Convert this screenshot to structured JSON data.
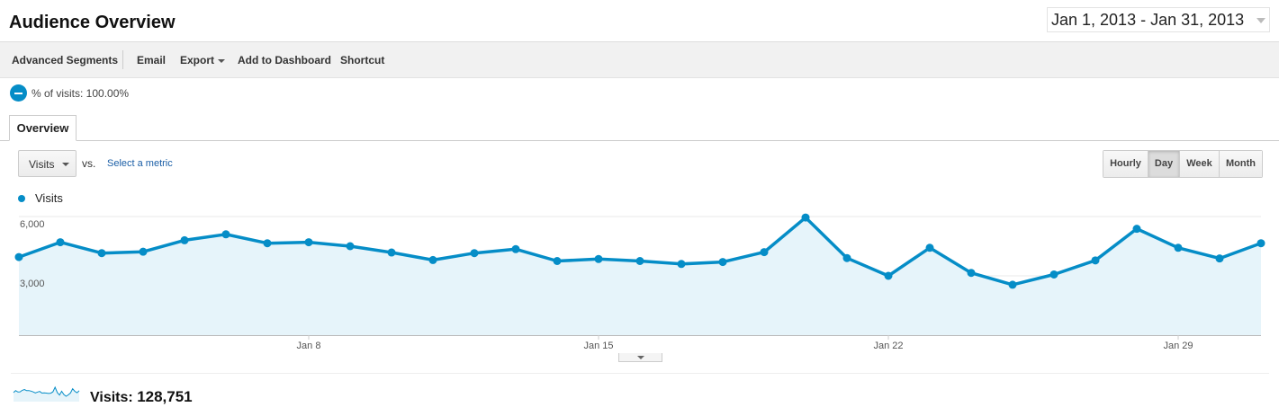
{
  "header": {
    "title": "Audience Overview",
    "date_range": "Jan 1, 2013 - Jan 31, 2013"
  },
  "toolbar": {
    "advanced_segments": "Advanced Segments",
    "email": "Email",
    "export": "Export",
    "add_to_dashboard": "Add to Dashboard",
    "shortcut": "Shortcut"
  },
  "segment": {
    "label": "% of visits: 100.00%"
  },
  "tabs": [
    {
      "label": "Overview"
    }
  ],
  "controls": {
    "metric": "Visits",
    "vs": "vs.",
    "select_metric": "Select a metric",
    "granularity": [
      "Hourly",
      "Day",
      "Week",
      "Month"
    ],
    "active_granularity": "Day"
  },
  "colors": {
    "series": "#058dc7",
    "fill": "#e6f4fa"
  },
  "chart_data": {
    "type": "area",
    "series": [
      {
        "name": "Visits",
        "x": [
          "Jan 1",
          "Jan 2",
          "Jan 3",
          "Jan 4",
          "Jan 5",
          "Jan 6",
          "Jan 7",
          "Jan 8",
          "Jan 9",
          "Jan 10",
          "Jan 11",
          "Jan 12",
          "Jan 13",
          "Jan 14",
          "Jan 15",
          "Jan 16",
          "Jan 17",
          "Jan 18",
          "Jan 19",
          "Jan 20",
          "Jan 21",
          "Jan 22",
          "Jan 23",
          "Jan 24",
          "Jan 25",
          "Jan 26",
          "Jan 27",
          "Jan 28",
          "Jan 29",
          "Jan 30",
          "Jan 31"
        ],
        "values": [
          3950,
          4700,
          4150,
          4220,
          4800,
          5100,
          4650,
          4700,
          4500,
          4180,
          3800,
          4150,
          4350,
          3750,
          3850,
          3750,
          3600,
          3700,
          4200,
          5950,
          3900,
          3000,
          4420,
          3150,
          2550,
          3070,
          3780,
          5380,
          4420,
          3880,
          4650
        ]
      }
    ],
    "y_ticks": [
      "6,000",
      "3,000"
    ],
    "y_tick_values": [
      6000,
      3000
    ],
    "ylim": [
      0,
      6000
    ],
    "x_ticks": [
      {
        "label": "Jan 8",
        "day": 8
      },
      {
        "label": "Jan 15",
        "day": 15
      },
      {
        "label": "Jan 22",
        "day": 22
      },
      {
        "label": "Jan 29",
        "day": 29
      }
    ],
    "grid": true,
    "legend": "top-left"
  },
  "summary": {
    "label": "Visits:",
    "value": "128,751"
  }
}
